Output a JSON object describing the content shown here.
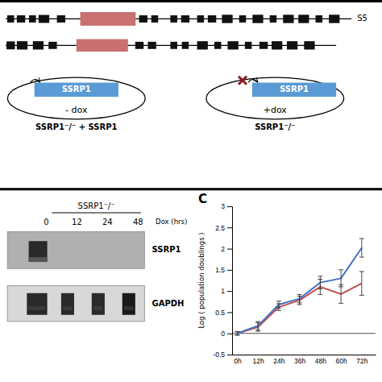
{
  "chart_data": {
    "type": "line",
    "y_label": "Log ( population doublings )",
    "x": [
      0,
      12,
      24,
      36,
      48,
      60,
      72
    ],
    "xlim": [
      -3,
      80
    ],
    "xticks": [
      {
        "value": 0,
        "label": "0h"
      },
      {
        "value": 12,
        "label": "12h"
      },
      {
        "value": 24,
        "label": "24h"
      },
      {
        "value": 36,
        "label": "36h"
      },
      {
        "value": 48,
        "label": "48h"
      },
      {
        "value": 60,
        "label": "60h"
      },
      {
        "value": 72,
        "label": "72h"
      }
    ],
    "ylim": [
      -0.5,
      3.0
    ],
    "yticks": [
      -0.5,
      0,
      0.5,
      1,
      1.5,
      2,
      2.5,
      3
    ],
    "series": [
      {
        "color": "#4472c4",
        "values": [
          0,
          0.18,
          0.68,
          0.82,
          1.2,
          1.3,
          2.02
        ],
        "errors": [
          0.04,
          0.1,
          0.08,
          0.1,
          0.15,
          0.2,
          0.22
        ]
      },
      {
        "color": "#c0504d",
        "values": [
          0,
          0.15,
          0.62,
          0.78,
          1.1,
          0.93,
          1.18
        ],
        "errors": [
          0.04,
          0.1,
          0.08,
          0.1,
          0.18,
          0.22,
          0.28
        ]
      }
    ],
    "annotations": [
      "S5",
      "SSRP1",
      "- dox",
      "SSRP1⁻/⁻ + SSRP1",
      "+dox",
      "SSRP1⁻/⁻",
      "SSRP1⁻/⁻",
      "0",
      "12",
      "24",
      "48",
      "Dox (hrs)",
      "SSRP1",
      "GAPDH",
      "C"
    ]
  }
}
